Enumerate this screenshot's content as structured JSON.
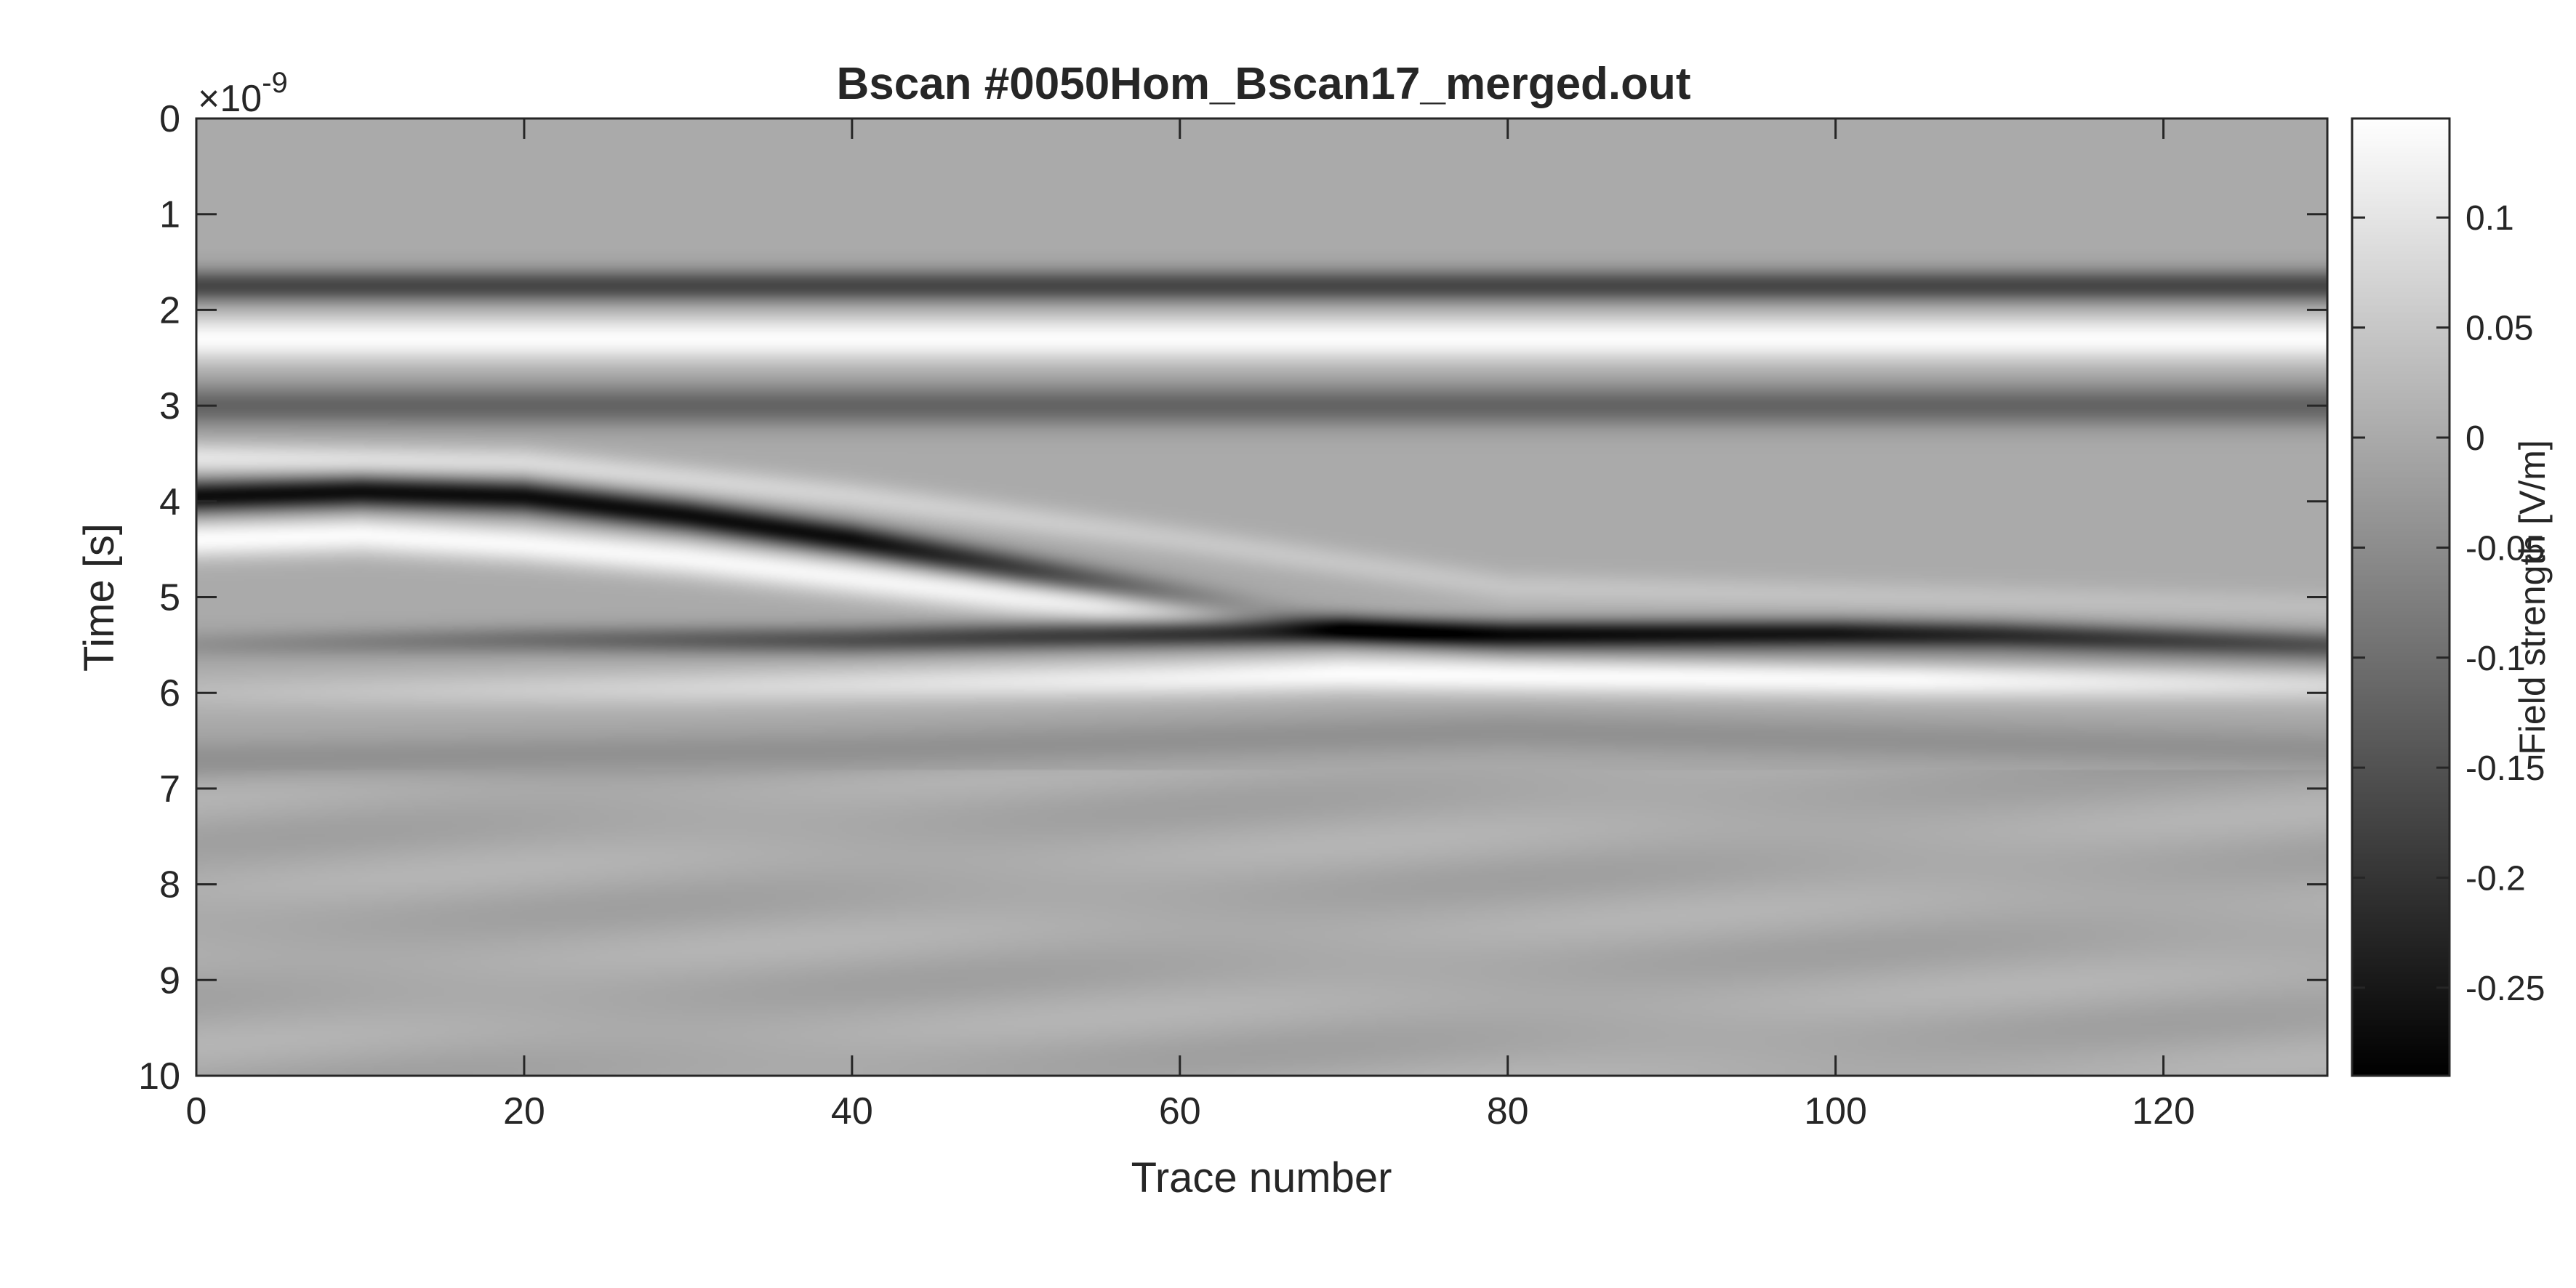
{
  "chart_data": {
    "type": "heatmap",
    "title": "Bscan #0050Hom_Bscan17_merged.out",
    "xlabel": "Trace number",
    "ylabel": "Time [s]",
    "y_exponent_label": "×10",
    "y_exponent_power": "-9",
    "xlim": [
      0,
      130
    ],
    "ylim": [
      0,
      10
    ],
    "y_reversed": true,
    "x_ticks": [
      "0",
      "20",
      "40",
      "60",
      "80",
      "100",
      "120"
    ],
    "x_tick_values": [
      0,
      20,
      40,
      60,
      80,
      100,
      120
    ],
    "y_ticks": [
      "0",
      "1",
      "2",
      "3",
      "4",
      "5",
      "6",
      "7",
      "8",
      "9",
      "10"
    ],
    "y_tick_values": [
      0,
      1,
      2,
      3,
      4,
      5,
      6,
      7,
      8,
      9,
      10
    ],
    "colorbar": {
      "label": "Field strength [V/m]",
      "range": [
        -0.29,
        0.145
      ],
      "ticks": [
        "0.1",
        "0.05",
        "0",
        "-0.05",
        "-0.1",
        "-0.15",
        "-0.2",
        "-0.25"
      ],
      "tick_values": [
        0.1,
        0.05,
        0,
        -0.05,
        -0.1,
        -0.15,
        -0.2,
        -0.25
      ],
      "colormap": "gray"
    },
    "events": [
      {
        "kind": "direct-wave",
        "t_at_x": [
          [
            0,
            1.75
          ],
          [
            130,
            1.75
          ]
        ],
        "amplitude": -0.17,
        "width": 0.17
      },
      {
        "kind": "direct-wave",
        "t_at_x": [
          [
            0,
            2.3
          ],
          [
            130,
            2.3
          ]
        ],
        "amplitude": 0.14,
        "width": 0.24
      },
      {
        "kind": "direct-wave",
        "t_at_x": [
          [
            0,
            3.0
          ],
          [
            130,
            3.0
          ]
        ],
        "amplitude": -0.12,
        "width": 0.22
      },
      {
        "kind": "reflection-1",
        "t_at_x": [
          [
            0,
            3.95
          ],
          [
            10,
            3.9
          ],
          [
            20,
            3.95
          ],
          [
            30,
            4.15
          ],
          [
            40,
            4.4
          ],
          [
            50,
            4.7
          ],
          [
            60,
            5.0
          ],
          [
            70,
            5.3
          ],
          [
            80,
            5.5
          ],
          [
            90,
            5.55
          ],
          [
            100,
            5.6
          ],
          [
            115,
            5.65
          ],
          [
            130,
            5.7
          ]
        ],
        "amplitude": -0.27,
        "fade": [
          [
            0,
            1
          ],
          [
            40,
            1
          ],
          [
            65,
            0.3
          ],
          [
            80,
            0.2
          ],
          [
            130,
            0.15
          ]
        ],
        "width": 0.17
      },
      {
        "kind": "reflection-1-lobe",
        "t_at_x": [
          [
            0,
            3.55
          ],
          [
            20,
            3.6
          ],
          [
            40,
            3.95
          ],
          [
            60,
            4.4
          ],
          [
            80,
            4.9
          ],
          [
            130,
            5.1
          ]
        ],
        "amplitude": 0.1,
        "fade": [
          [
            0,
            1
          ],
          [
            60,
            0.5
          ],
          [
            130,
            0.3
          ]
        ],
        "width": 0.17
      },
      {
        "kind": "reflection-1-lobe",
        "t_at_x": [
          [
            0,
            4.4
          ],
          [
            10,
            4.35
          ],
          [
            20,
            4.45
          ],
          [
            30,
            4.6
          ],
          [
            40,
            4.8
          ],
          [
            50,
            5.0
          ],
          [
            60,
            5.15
          ],
          [
            70,
            5.3
          ],
          [
            130,
            5.5
          ]
        ],
        "amplitude": 0.14,
        "fade": [
          [
            0,
            1
          ],
          [
            55,
            0.9
          ],
          [
            70,
            0.3
          ],
          [
            130,
            0.2
          ]
        ],
        "width": 0.2
      },
      {
        "kind": "reflection-2",
        "t_at_x": [
          [
            0,
            5.5
          ],
          [
            20,
            5.45
          ],
          [
            40,
            5.45
          ],
          [
            60,
            5.38
          ],
          [
            70,
            5.35
          ],
          [
            80,
            5.38
          ],
          [
            90,
            5.38
          ],
          [
            100,
            5.38
          ],
          [
            110,
            5.4
          ],
          [
            120,
            5.45
          ],
          [
            130,
            5.5
          ]
        ],
        "amplitude": -0.28,
        "fade": [
          [
            0,
            0.15
          ],
          [
            30,
            0.45
          ],
          [
            55,
            0.7
          ],
          [
            70,
            1
          ],
          [
            100,
            1
          ],
          [
            130,
            0.6
          ]
        ],
        "width": 0.15
      },
      {
        "kind": "reflection-2-lobe",
        "t_at_x": [
          [
            0,
            6.0
          ],
          [
            30,
            5.95
          ],
          [
            60,
            5.85
          ],
          [
            70,
            5.8
          ],
          [
            80,
            5.82
          ],
          [
            100,
            5.85
          ],
          [
            130,
            5.9
          ]
        ],
        "amplitude": 0.14,
        "fade": [
          [
            0,
            0.2
          ],
          [
            40,
            0.6
          ],
          [
            70,
            1
          ],
          [
            105,
            1
          ],
          [
            130,
            0.6
          ]
        ],
        "width": 0.2
      },
      {
        "kind": "reflection-2-lobe",
        "t_at_x": [
          [
            0,
            6.7
          ],
          [
            40,
            6.6
          ],
          [
            80,
            6.4
          ],
          [
            130,
            6.6
          ]
        ],
        "amplitude": -0.07,
        "fade": [
          [
            0,
            0.6
          ],
          [
            130,
            0.6
          ]
        ],
        "width": 0.22
      }
    ]
  }
}
